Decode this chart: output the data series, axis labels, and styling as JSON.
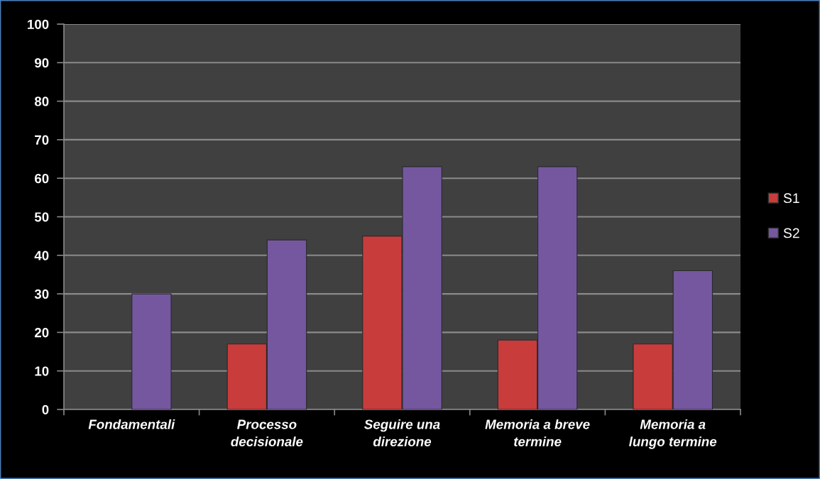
{
  "chart_data": {
    "type": "bar",
    "categories": [
      "Fondamentali",
      "Processo\ndecisionale",
      "Seguire una\ndirezione",
      "Memoria a breve\ntermine",
      "Memoria a\nlungo termine"
    ],
    "series": [
      {
        "name": "S1",
        "color": "#c83c3c",
        "values": [
          null,
          17,
          45,
          18,
          17
        ]
      },
      {
        "name": "S2",
        "color": "#7557a0",
        "values": [
          30,
          44,
          63,
          63,
          36
        ]
      }
    ],
    "ylim": [
      0,
      100
    ],
    "yticks": [
      0,
      10,
      20,
      30,
      40,
      50,
      60,
      70,
      80,
      90,
      100
    ],
    "grid": "y",
    "legend": "right"
  }
}
